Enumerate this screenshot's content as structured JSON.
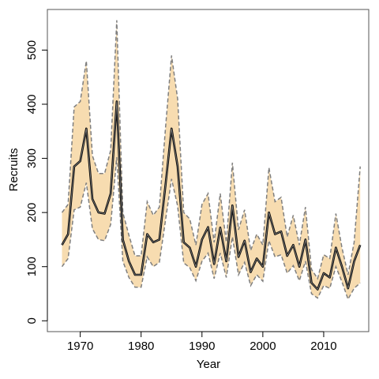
{
  "chart_data": {
    "type": "line",
    "title": "",
    "xlabel": "Year",
    "ylabel": "Recruits",
    "xlim": [
      1964.6,
      2017.4
    ],
    "ylim": [
      -20,
      575
    ],
    "xticks": [
      1970,
      1980,
      1990,
      2000,
      2010
    ],
    "yticks": [
      0,
      100,
      200,
      300,
      400,
      500
    ],
    "grid": false,
    "legend": "none",
    "colors": {
      "band_fill": "#f7dcb0",
      "bound_line": "#7f7f7f",
      "median_line": "#000000",
      "median_highlight": "#7f7f7f"
    },
    "x": [
      1967,
      1968,
      1969,
      1970,
      1971,
      1972,
      1973,
      1974,
      1975,
      1976,
      1977,
      1978,
      1979,
      1980,
      1981,
      1982,
      1983,
      1984,
      1985,
      1986,
      1987,
      1988,
      1989,
      1990,
      1991,
      1992,
      1993,
      1994,
      1995,
      1996,
      1997,
      1998,
      1999,
      2000,
      2001,
      2002,
      2003,
      2004,
      2005,
      2006,
      2007,
      2008,
      2009,
      2010,
      2011,
      2012,
      2013,
      2014,
      2015,
      2016
    ],
    "series": [
      {
        "role": "median",
        "values": [
          140,
          160,
          285,
          295,
          355,
          225,
          200,
          198,
          235,
          405,
          150,
          110,
          85,
          85,
          160,
          145,
          150,
          250,
          355,
          285,
          145,
          135,
          100,
          150,
          173,
          105,
          172,
          110,
          213,
          118,
          148,
          90,
          115,
          100,
          200,
          160,
          165,
          120,
          140,
          100,
          150,
          70,
          58,
          88,
          80,
          135,
          100,
          60,
          110,
          140
        ]
      },
      {
        "role": "upper",
        "values": [
          200,
          215,
          395,
          405,
          480,
          305,
          272,
          272,
          315,
          555,
          200,
          158,
          120,
          120,
          220,
          195,
          210,
          355,
          490,
          410,
          200,
          188,
          140,
          215,
          235,
          145,
          235,
          145,
          292,
          168,
          205,
          130,
          160,
          140,
          283,
          220,
          228,
          155,
          195,
          140,
          210,
          95,
          78,
          122,
          115,
          198,
          135,
          85,
          145,
          285
        ]
      },
      {
        "role": "lower",
        "values": [
          100,
          115,
          205,
          210,
          255,
          170,
          150,
          148,
          178,
          302,
          110,
          80,
          62,
          62,
          118,
          100,
          108,
          185,
          262,
          212,
          107,
          98,
          74,
          110,
          125,
          78,
          125,
          80,
          155,
          85,
          108,
          65,
          85,
          73,
          148,
          118,
          122,
          88,
          102,
          74,
          110,
          50,
          42,
          65,
          60,
          100,
          72,
          40,
          60,
          70
        ]
      }
    ]
  }
}
